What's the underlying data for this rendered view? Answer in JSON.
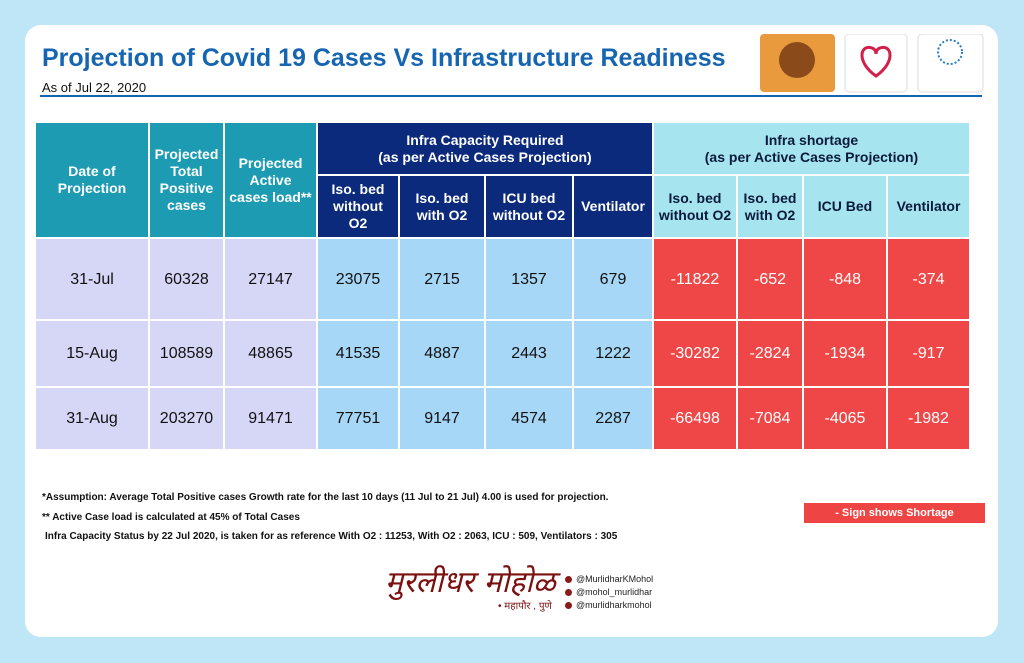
{
  "header": {
    "title": "Projection of Covid 19 Cases Vs Infrastructure Readiness",
    "subtitle": "As of Jul 22, 2020"
  },
  "table": {
    "group_headers": [
      {
        "title": "Infra Capacity Required",
        "subtitle": "(as per Active Cases Projection)"
      },
      {
        "title": "Infra shortage",
        "subtitle": "(as per Active Cases Projection)"
      }
    ],
    "columns": [
      "Date of Projection",
      "Projected Total Positive cases",
      "Projected Active cases load**",
      "Iso. bed without O2",
      "Iso. bed with O2",
      "ICU bed without O2",
      "Ventilator",
      "Iso. bed without O2",
      "Iso. bed with O2",
      "ICU Bed",
      "Ventilator"
    ],
    "rows": [
      [
        "31-Jul",
        60328,
        27147,
        23075,
        2715,
        1357,
        679,
        -11822,
        -652,
        -848,
        -374
      ],
      [
        "15-Aug",
        108589,
        48865,
        41535,
        4887,
        2443,
        1222,
        -30282,
        -2824,
        -1934,
        -917
      ],
      [
        "31-Aug",
        203270,
        91471,
        77751,
        9147,
        4574,
        2287,
        -66498,
        -7084,
        -4065,
        -1982
      ]
    ]
  },
  "notes": [
    "*Assumption: Average Total Positive cases Growth rate for the last 10 days (11 Jul to 21 Jul) 4.00 is used for projection.",
    "** Active Case load is calculated at 45% of Total Cases",
    "Infra Capacity Status by 22 Jul 2020, is taken for as reference With O2 : 11253, With O2 : 2063, ICU : 509, Ventilators : 305"
  ],
  "legend": "- Sign shows Shortage",
  "signature": {
    "name": "मुरलीधर मोहोळ",
    "role": "• महापौर , पुणे"
  },
  "social": [
    "@MurlidharKMohol",
    "@mohol_murlidhar",
    "@murlidharkmohol"
  ]
}
